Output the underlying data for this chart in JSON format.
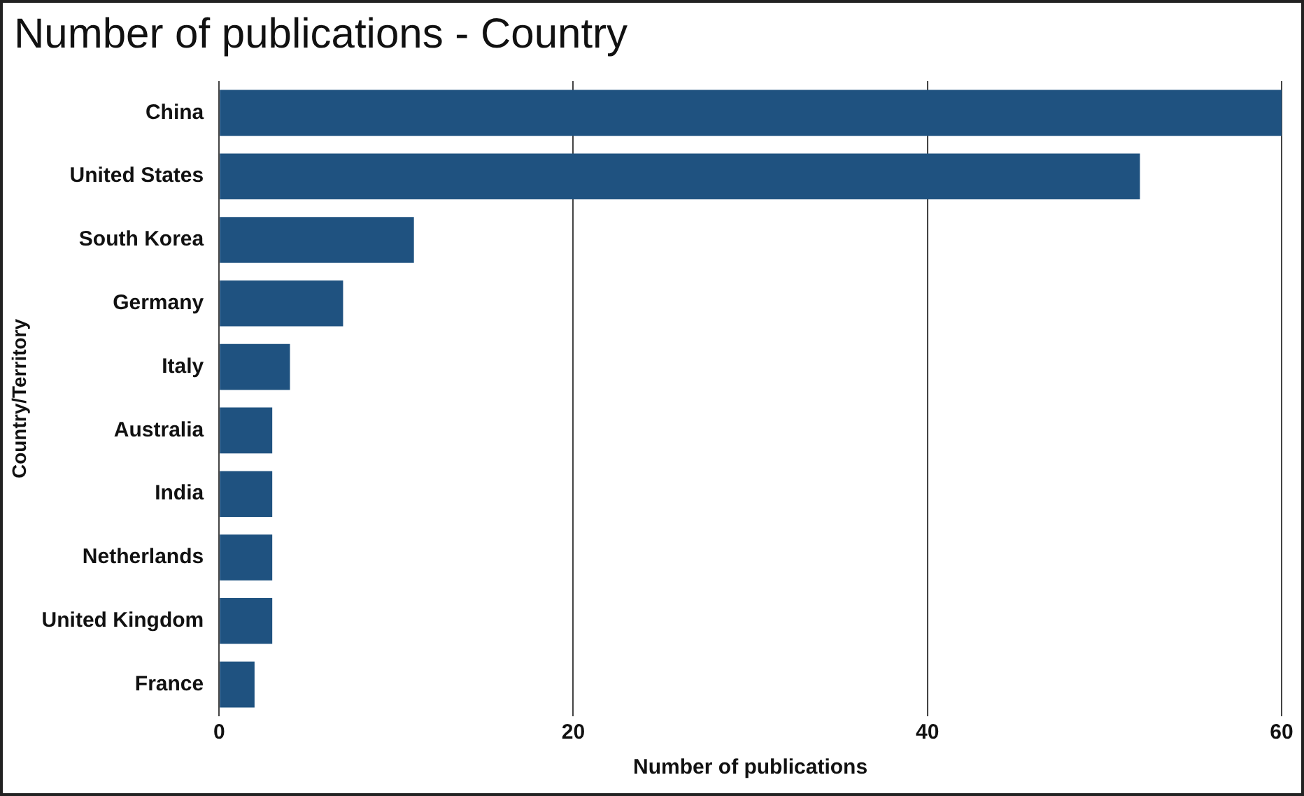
{
  "chart_data": {
    "type": "bar",
    "orientation": "horizontal",
    "title": "Number of publications - Country",
    "xlabel": "Number of publications",
    "ylabel": "Country/Territory",
    "categories": [
      "China",
      "United States",
      "South Korea",
      "Germany",
      "Italy",
      "Australia",
      "India",
      "Netherlands",
      "United Kingdom",
      "France"
    ],
    "values": [
      60,
      52,
      11,
      7,
      4,
      3,
      3,
      3,
      3,
      2
    ],
    "color": "#1f5280",
    "xlim": [
      0,
      60
    ],
    "xticks": [
      0,
      20,
      40,
      60
    ],
    "grid": "x",
    "legend": false
  }
}
